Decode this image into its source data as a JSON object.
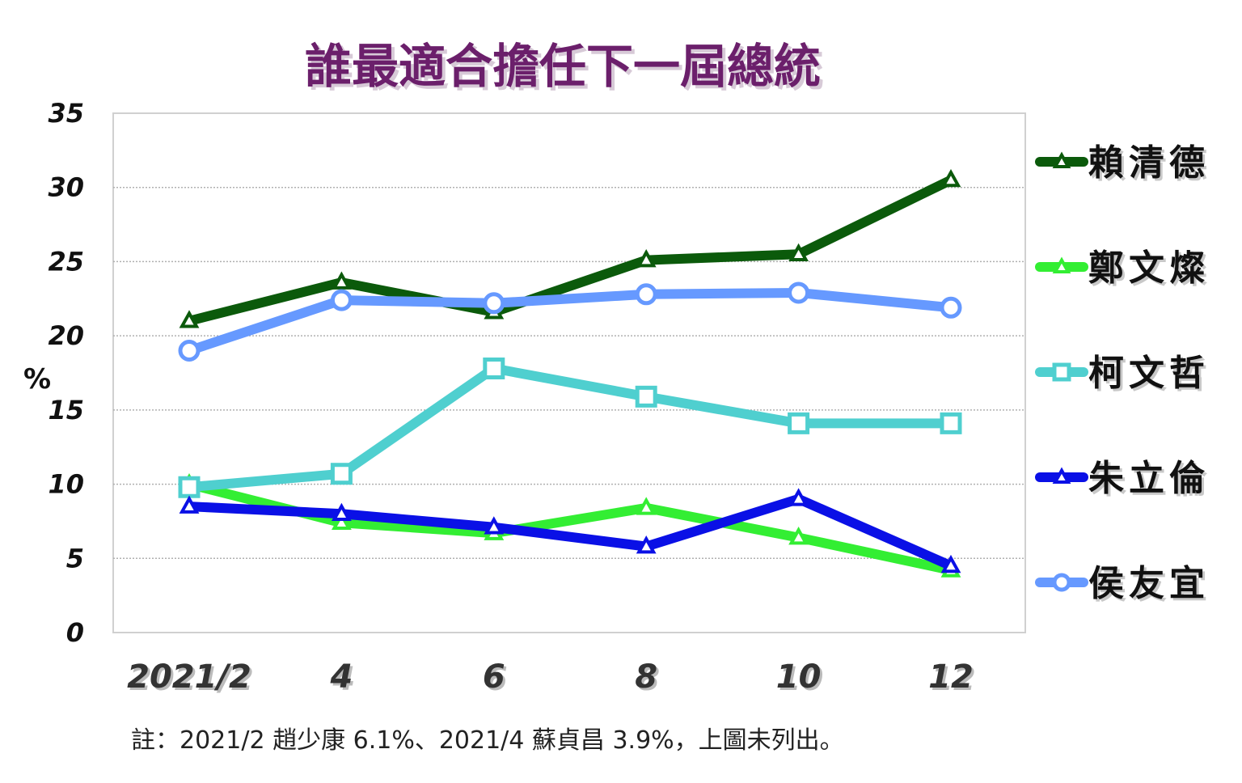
{
  "chart_data": {
    "type": "line",
    "title": "誰最適合擔任下一屆總統",
    "ylabel": "%",
    "xlabel": "",
    "ylim": [
      0,
      35
    ],
    "yticks": [
      0,
      5,
      10,
      15,
      20,
      25,
      30,
      35
    ],
    "categories": [
      "2021/2",
      "4",
      "6",
      "8",
      "10",
      "12"
    ],
    "grid": true,
    "legend_position": "right",
    "series": [
      {
        "name": "賴清德",
        "color": "#0b5a0b",
        "marker": "triangle",
        "values": [
          21.0,
          23.6,
          21.6,
          25.1,
          25.5,
          30.5
        ]
      },
      {
        "name": "鄭文燦",
        "color": "#33ee33",
        "marker": "triangle",
        "values": [
          10.0,
          7.4,
          6.7,
          8.4,
          6.4,
          4.2
        ]
      },
      {
        "name": "柯文哲",
        "color": "#4fcfcf",
        "marker": "square",
        "values": [
          9.8,
          10.7,
          17.8,
          15.9,
          14.1,
          14.1
        ]
      },
      {
        "name": "朱立倫",
        "color": "#0a10e6",
        "marker": "triangle",
        "values": [
          8.5,
          8.0,
          7.1,
          5.8,
          9.0,
          4.5
        ]
      },
      {
        "name": "侯友宜",
        "color": "#6699ff",
        "marker": "circle",
        "values": [
          19.0,
          22.4,
          22.2,
          22.8,
          22.9,
          21.9
        ]
      }
    ]
  },
  "note": "註：2021/2 趙少康 6.1%、2021/4 蘇貞昌 3.9%，上圖未列出。"
}
